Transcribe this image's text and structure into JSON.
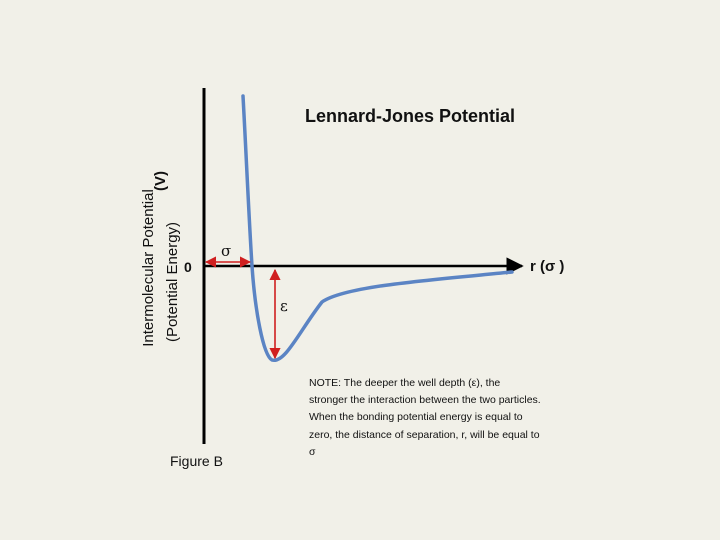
{
  "chart_data": {
    "type": "line",
    "title": "Lennard-Jones Potential",
    "ylabel_line1": "Intermolecular Potential",
    "ylabel_line2": "(Potential Energy)",
    "ylabel_symbol": "(V)",
    "xlabel": "r (σ )",
    "y_zero_label": "0",
    "sigma_label": "σ",
    "epsilon_label": "ε",
    "series": [
      {
        "color": "#5b84c4"
      }
    ],
    "axis_color": "#000000",
    "arrow_color": "#d01f1f"
  },
  "note": "NOTE: The deeper the well depth (ε), the stronger the interaction between the two particles.  When the bonding potential energy is equal to zero, the distance of separation, r, will be equal to σ",
  "figure_label": "Figure B"
}
